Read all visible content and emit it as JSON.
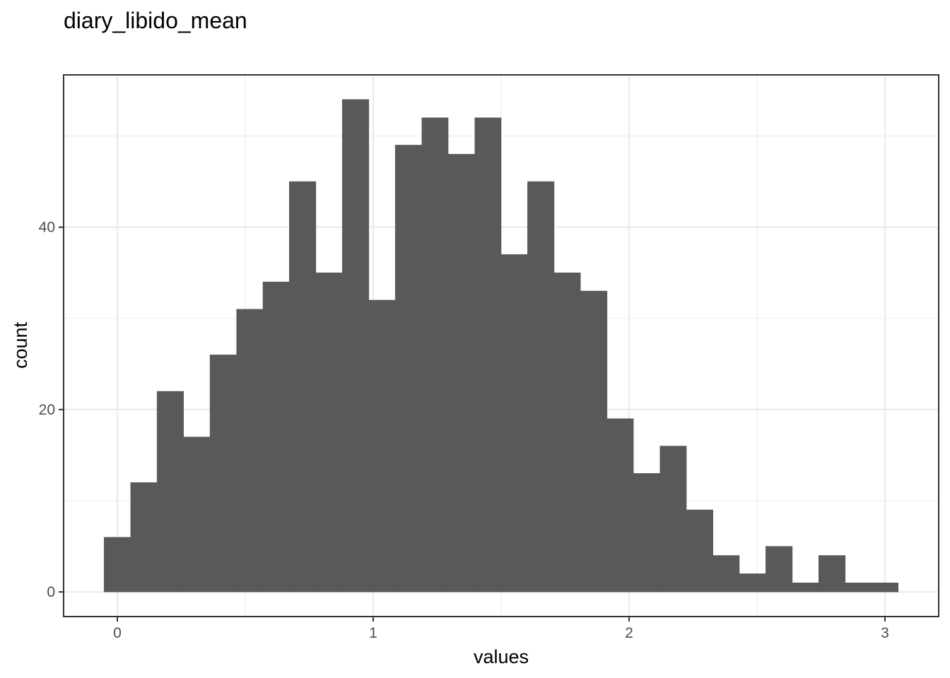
{
  "chart_data": {
    "type": "bar",
    "title": "diary_libido_mean",
    "xlabel": "values",
    "ylabel": "count",
    "xlim": [
      -0.21,
      3.21
    ],
    "ylim": [
      -2.7,
      56.7
    ],
    "x_ticks": [
      0,
      1,
      2,
      3
    ],
    "y_ticks": [
      0,
      20,
      40
    ],
    "x_minor": [
      0.5,
      1.5,
      2.5
    ],
    "y_minor": [
      10,
      30,
      50
    ],
    "grid": true,
    "bar_color": "#595959",
    "bins": [
      {
        "x0": -0.052,
        "x1": 0.052,
        "count": 6
      },
      {
        "x0": 0.052,
        "x1": 0.155,
        "count": 12
      },
      {
        "x0": 0.155,
        "x1": 0.259,
        "count": 22
      },
      {
        "x0": 0.259,
        "x1": 0.362,
        "count": 17
      },
      {
        "x0": 0.362,
        "x1": 0.466,
        "count": 26
      },
      {
        "x0": 0.466,
        "x1": 0.569,
        "count": 31
      },
      {
        "x0": 0.569,
        "x1": 0.672,
        "count": 34
      },
      {
        "x0": 0.672,
        "x1": 0.776,
        "count": 45
      },
      {
        "x0": 0.776,
        "x1": 0.879,
        "count": 35
      },
      {
        "x0": 0.879,
        "x1": 0.983,
        "count": 54
      },
      {
        "x0": 0.983,
        "x1": 1.086,
        "count": 32
      },
      {
        "x0": 1.086,
        "x1": 1.19,
        "count": 49
      },
      {
        "x0": 1.19,
        "x1": 1.293,
        "count": 52
      },
      {
        "x0": 1.293,
        "x1": 1.397,
        "count": 48
      },
      {
        "x0": 1.397,
        "x1": 1.5,
        "count": 52
      },
      {
        "x0": 1.5,
        "x1": 1.603,
        "count": 37
      },
      {
        "x0": 1.603,
        "x1": 1.707,
        "count": 45
      },
      {
        "x0": 1.707,
        "x1": 1.81,
        "count": 35
      },
      {
        "x0": 1.81,
        "x1": 1.914,
        "count": 33
      },
      {
        "x0": 1.914,
        "x1": 2.017,
        "count": 19
      },
      {
        "x0": 2.017,
        "x1": 2.121,
        "count": 13
      },
      {
        "x0": 2.121,
        "x1": 2.224,
        "count": 16
      },
      {
        "x0": 2.224,
        "x1": 2.328,
        "count": 9
      },
      {
        "x0": 2.328,
        "x1": 2.431,
        "count": 4
      },
      {
        "x0": 2.431,
        "x1": 2.534,
        "count": 2
      },
      {
        "x0": 2.534,
        "x1": 2.638,
        "count": 5
      },
      {
        "x0": 2.638,
        "x1": 2.741,
        "count": 1
      },
      {
        "x0": 2.741,
        "x1": 2.845,
        "count": 4
      },
      {
        "x0": 2.845,
        "x1": 2.948,
        "count": 1
      },
      {
        "x0": 2.948,
        "x1": 3.052,
        "count": 1
      }
    ]
  }
}
